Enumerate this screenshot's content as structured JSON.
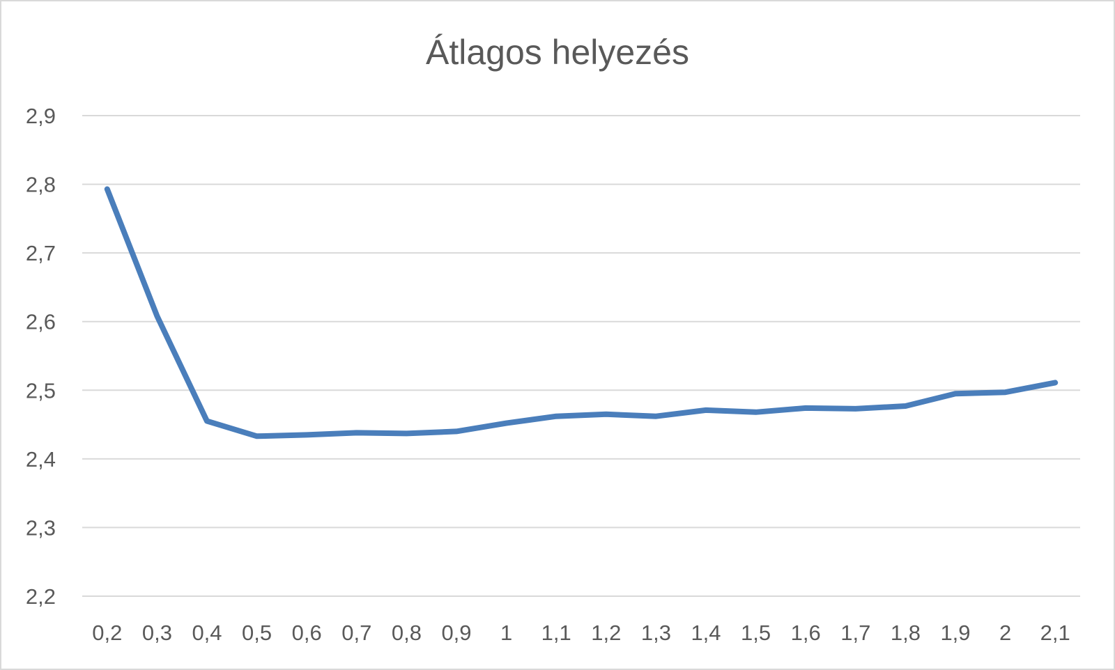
{
  "chart_data": {
    "type": "line",
    "title": "Átlagos helyezés",
    "xlabel": "",
    "ylabel": "",
    "categories": [
      "0,2",
      "0,3",
      "0,4",
      "0,5",
      "0,6",
      "0,7",
      "0,8",
      "0,9",
      "1",
      "1,1",
      "1,2",
      "1,3",
      "1,4",
      "1,5",
      "1,6",
      "1,7",
      "1,8",
      "1,9",
      "2",
      "2,1"
    ],
    "series": [
      {
        "values": [
          2.793,
          2.608,
          2.455,
          2.433,
          2.435,
          2.438,
          2.437,
          2.44,
          2.452,
          2.462,
          2.465,
          2.462,
          2.471,
          2.468,
          2.474,
          2.473,
          2.477,
          2.495,
          2.497,
          2.511
        ],
        "color": "#4a7ebb"
      }
    ],
    "ylim": [
      2.2,
      2.9
    ],
    "yticks": [
      "2,2",
      "2,3",
      "2,4",
      "2,5",
      "2,6",
      "2,7",
      "2,8",
      "2,9"
    ],
    "ytick_values": [
      2.2,
      2.3,
      2.4,
      2.5,
      2.6,
      2.7,
      2.8,
      2.9
    ],
    "grid": true,
    "legend": "none"
  }
}
